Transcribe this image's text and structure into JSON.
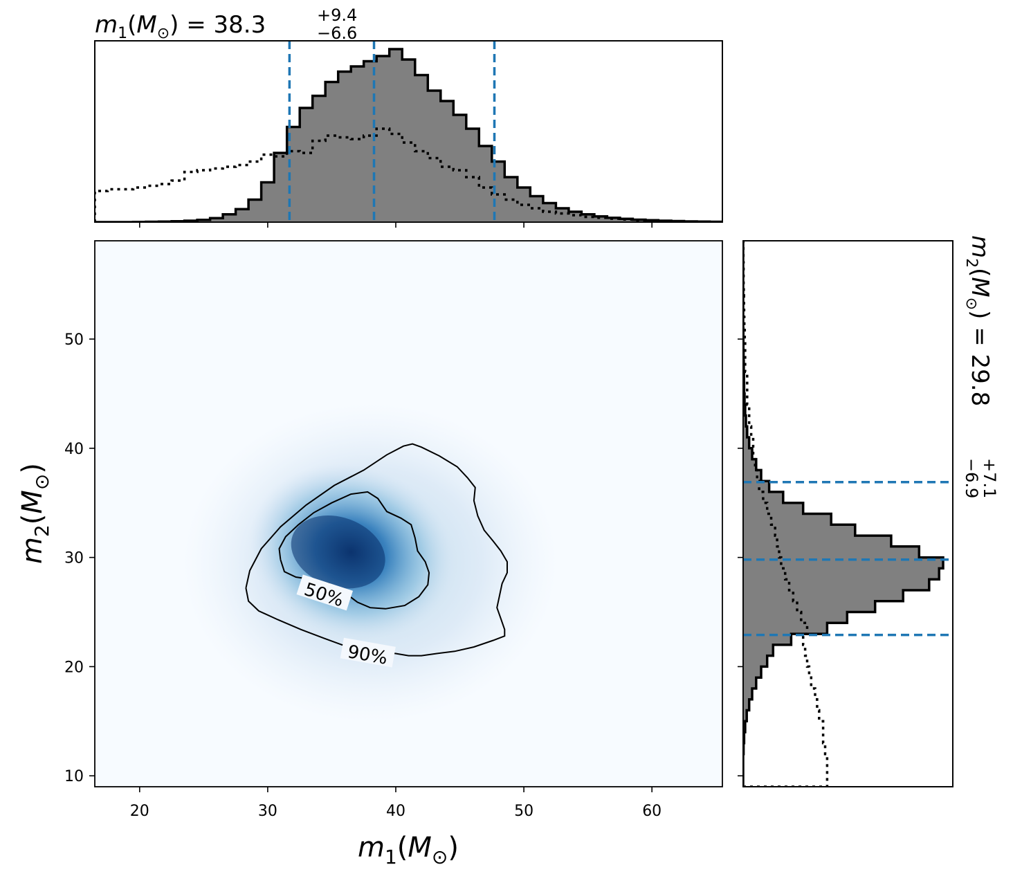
{
  "chart_data": [
    {
      "type": "heatmap",
      "panel": "joint",
      "xlabel": "m₁(M⊙)",
      "ylabel": "m₂(M⊙)",
      "xlim": [
        16.5,
        65.5
      ],
      "ylim": [
        9.0,
        59.0
      ],
      "xticks": [
        20,
        30,
        40,
        50,
        60
      ],
      "yticks": [
        10,
        20,
        30,
        40,
        50
      ],
      "colormap": "Blues",
      "density_peak": {
        "m1": 35.5,
        "m2": 30.5
      },
      "contour_labels": [
        "50%",
        "90%"
      ],
      "contours": [
        {
          "label": "50%",
          "points": [
            [
              31.0,
              29.8
            ],
            [
              30.9,
              30.8
            ],
            [
              31.4,
              31.9
            ],
            [
              32.4,
              33.0
            ],
            [
              33.6,
              34.1
            ],
            [
              35.0,
              35.0
            ],
            [
              36.5,
              35.8
            ],
            [
              37.8,
              36.0
            ],
            [
              38.6,
              35.4
            ],
            [
              39.3,
              34.2
            ],
            [
              40.4,
              33.6
            ],
            [
              41.2,
              33.0
            ],
            [
              41.5,
              31.8
            ],
            [
              41.7,
              30.6
            ],
            [
              42.3,
              29.6
            ],
            [
              42.6,
              28.6
            ],
            [
              42.5,
              27.5
            ],
            [
              41.8,
              26.4
            ],
            [
              40.7,
              25.6
            ],
            [
              39.2,
              25.3
            ],
            [
              38.0,
              25.4
            ],
            [
              37.0,
              25.9
            ],
            [
              36.0,
              26.8
            ],
            [
              34.8,
              27.6
            ],
            [
              33.4,
              28.0
            ],
            [
              32.2,
              28.2
            ],
            [
              31.3,
              28.7
            ],
            [
              31.0,
              29.8
            ]
          ]
        },
        {
          "label": "90%",
          "points": [
            [
              28.3,
              27.2
            ],
            [
              28.6,
              28.8
            ],
            [
              29.5,
              30.8
            ],
            [
              31.0,
              32.8
            ],
            [
              33.0,
              34.8
            ],
            [
              35.2,
              36.6
            ],
            [
              37.5,
              38.0
            ],
            [
              39.3,
              39.4
            ],
            [
              40.6,
              40.2
            ],
            [
              41.3,
              40.4
            ],
            [
              42.0,
              40.1
            ],
            [
              43.4,
              39.3
            ],
            [
              44.8,
              38.3
            ],
            [
              45.6,
              37.3
            ],
            [
              46.2,
              36.4
            ],
            [
              46.1,
              35.2
            ],
            [
              46.4,
              33.8
            ],
            [
              46.9,
              32.5
            ],
            [
              47.6,
              31.5
            ],
            [
              48.2,
              30.6
            ],
            [
              48.7,
              29.6
            ],
            [
              48.7,
              28.6
            ],
            [
              48.3,
              27.6
            ],
            [
              48.1,
              26.5
            ],
            [
              47.9,
              25.4
            ],
            [
              48.2,
              24.4
            ],
            [
              48.5,
              23.4
            ],
            [
              48.5,
              22.8
            ],
            [
              47.6,
              22.4
            ],
            [
              46.1,
              21.8
            ],
            [
              44.6,
              21.4
            ],
            [
              43.2,
              21.2
            ],
            [
              42.0,
              21.0
            ],
            [
              41.0,
              21.0
            ],
            [
              40.0,
              21.2
            ],
            [
              38.3,
              21.4
            ],
            [
              37.0,
              21.7
            ],
            [
              35.8,
              22.0
            ],
            [
              34.4,
              22.6
            ],
            [
              32.6,
              23.4
            ],
            [
              30.8,
              24.3
            ],
            [
              29.3,
              25.1
            ],
            [
              28.5,
              26.0
            ],
            [
              28.3,
              27.2
            ]
          ]
        }
      ]
    },
    {
      "type": "bar",
      "panel": "top-marginal",
      "title": "m₁(M⊙) = 38.3",
      "title_parts": {
        "label": "m₁(M⊙) = ",
        "median": "38.3",
        "upper": "+9.4",
        "lower": "−6.6"
      },
      "xlim": [
        16.5,
        65.5
      ],
      "bin_width": 1.0,
      "bin_start": 16.5,
      "posterior_heights": [
        0.0,
        0.0,
        0.0,
        0.001,
        0.002,
        0.003,
        0.005,
        0.008,
        0.013,
        0.023,
        0.045,
        0.075,
        0.13,
        0.23,
        0.4,
        0.55,
        0.66,
        0.73,
        0.81,
        0.87,
        0.9,
        0.93,
        0.96,
        1.0,
        0.94,
        0.85,
        0.76,
        0.7,
        0.62,
        0.54,
        0.44,
        0.35,
        0.26,
        0.2,
        0.15,
        0.11,
        0.08,
        0.06,
        0.045,
        0.033,
        0.025,
        0.019,
        0.014,
        0.011,
        0.008,
        0.006,
        0.004,
        0.003,
        0.002
      ],
      "prior_heights": [
        0.18,
        0.19,
        0.19,
        0.2,
        0.21,
        0.22,
        0.24,
        0.29,
        0.3,
        0.31,
        0.32,
        0.33,
        0.35,
        0.39,
        0.38,
        0.41,
        0.4,
        0.47,
        0.5,
        0.49,
        0.48,
        0.5,
        0.54,
        0.51,
        0.46,
        0.41,
        0.37,
        0.32,
        0.3,
        0.26,
        0.2,
        0.16,
        0.13,
        0.1,
        0.08,
        0.06,
        0.05,
        0.04,
        0.03,
        0.025,
        0.02,
        0.015,
        0.01,
        0.008,
        0.006,
        0.004,
        0.003,
        0.002,
        0.001
      ],
      "quantile_lines": [
        31.7,
        38.3,
        47.7
      ],
      "quantile_color": "#1f77b4"
    },
    {
      "type": "bar",
      "panel": "right-marginal",
      "title": "m₂(M⊙) = 29.8",
      "title_parts": {
        "label": "m₂(M⊙) = ",
        "median": "29.8",
        "upper": "+7.1",
        "lower": "−6.9"
      },
      "ylim": [
        9.0,
        59.0
      ],
      "bin_width": 1.0,
      "bin_start": 9.0,
      "posterior_heights": [
        0.0,
        0.0,
        0.0,
        0.002,
        0.005,
        0.01,
        0.018,
        0.03,
        0.045,
        0.065,
        0.09,
        0.12,
        0.15,
        0.24,
        0.42,
        0.52,
        0.66,
        0.8,
        0.93,
        0.98,
        1.0,
        0.88,
        0.74,
        0.56,
        0.44,
        0.3,
        0.2,
        0.13,
        0.09,
        0.065,
        0.045,
        0.03,
        0.02,
        0.014,
        0.01,
        0.007,
        0.005,
        0.004,
        0.003,
        0.002,
        0.001,
        0.001,
        0.0,
        0.0,
        0.0,
        0.0,
        0.0,
        0.0,
        0.0,
        0.0
      ],
      "prior_heights": [
        0.42,
        0.42,
        0.42,
        0.41,
        0.4,
        0.4,
        0.38,
        0.37,
        0.36,
        0.34,
        0.33,
        0.32,
        0.31,
        0.3,
        0.32,
        0.29,
        0.27,
        0.25,
        0.23,
        0.21,
        0.19,
        0.18,
        0.17,
        0.16,
        0.14,
        0.12,
        0.1,
        0.08,
        0.07,
        0.06,
        0.05,
        0.05,
        0.04,
        0.03,
        0.03,
        0.02,
        0.02,
        0.02,
        0.01,
        0.01,
        0.01,
        0.008,
        0.006,
        0.005,
        0.004,
        0.003,
        0.002,
        0.002,
        0.001,
        0.001
      ],
      "quantile_lines": [
        22.9,
        29.8,
        36.9
      ],
      "quantile_color": "#1f77b4"
    }
  ]
}
